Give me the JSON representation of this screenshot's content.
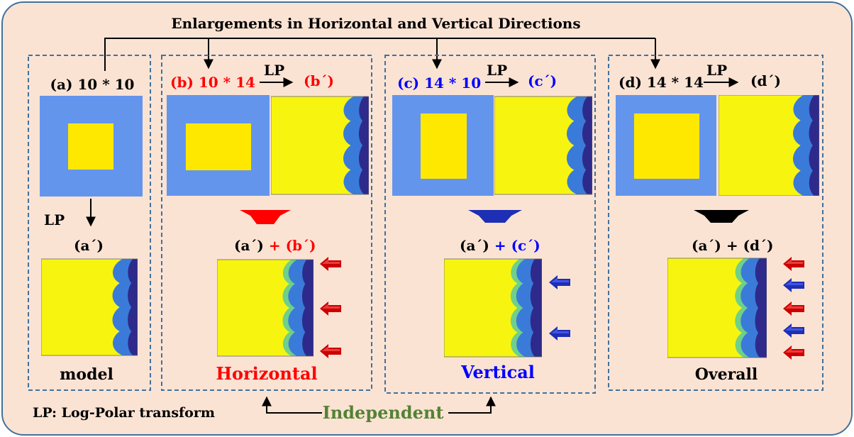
{
  "title": "Enlargements in Horizontal and Vertical Directions",
  "colors": {
    "background": "#fbe3d4",
    "border": "#41719c",
    "blue_frame": "#6495ed",
    "yellow": "#f7f50f",
    "square_yellow": "#ffe800",
    "lp_mid_blue": "#3a7bd9",
    "lp_dark": "#2e2a8c",
    "lp_green": "#6fd08a",
    "red": "#ff0000",
    "blue_text": "#0000ff",
    "green_text": "#548235",
    "red_arrow": "#cc0000",
    "blue_arrow": "#1c2fb5"
  },
  "panels": {
    "a": {
      "label": "(a) 10 * 10",
      "lp_label": "LP",
      "result_label": "(a´)",
      "caption": "model"
    },
    "b": {
      "label": "(b) 10 * 14",
      "lp_label": "LP",
      "result_label": "(b´)",
      "sum_left": "(a´)",
      "sum_plus": " + ",
      "sum_right": "(b´)",
      "caption": "Horizontal"
    },
    "c": {
      "label": "(c) 14 * 10",
      "lp_label": "LP",
      "result_label": "(c´)",
      "sum_left": "(a´)",
      "sum_plus": " + ",
      "sum_right": "(c´)",
      "caption": "Vertical"
    },
    "d": {
      "label": "(d) 14 * 14",
      "lp_label": "LP",
      "result_label": "(d´)",
      "sum_left": "(a´)",
      "sum_plus": " + ",
      "sum_right": "(d´)",
      "caption": "Overall"
    }
  },
  "footer": {
    "legend": "LP: Log-Polar transform",
    "independent": "Independent"
  }
}
